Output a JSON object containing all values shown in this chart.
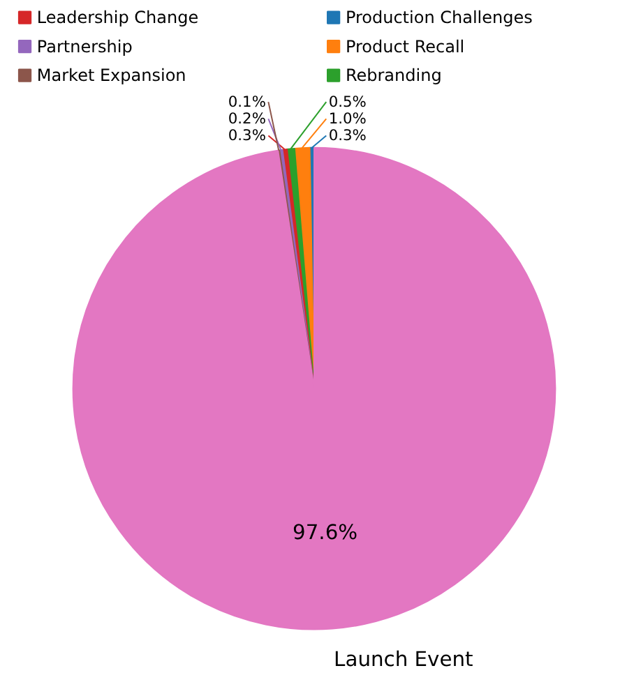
{
  "chart_data": {
    "type": "pie",
    "categories": [
      "Production Challenges",
      "Product Recall",
      "Rebranding",
      "Leadership Change",
      "Partnership",
      "Market Expansion",
      "Launch Event"
    ],
    "values": [
      0.3,
      1.0,
      0.5,
      0.3,
      0.2,
      0.1,
      97.6
    ],
    "colors": [
      "#1f77b4",
      "#ff7f0e",
      "#2ca02c",
      "#d62728",
      "#9467bd",
      "#8c564b",
      "#e377c2"
    ],
    "legend": "top",
    "value_labels": [
      "0.3%",
      "1.0%",
      "0.5%",
      "0.3%",
      "0.2%",
      "0.1%",
      "97.6%"
    ]
  }
}
